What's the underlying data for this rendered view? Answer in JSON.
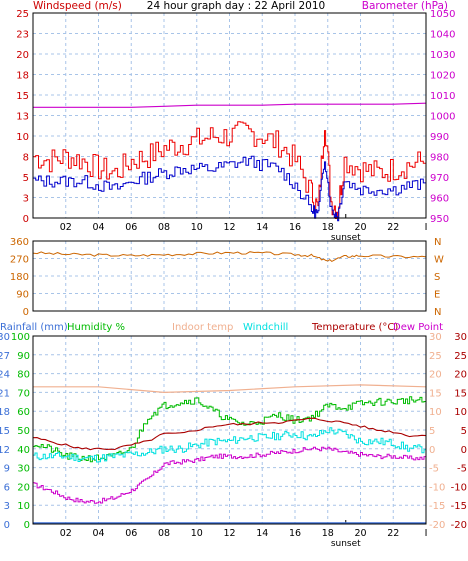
{
  "title": "24 hour graph day : 22 April 2010",
  "colors": {
    "windspeed": "#cc0000",
    "gust_line": "#ee0000",
    "avg_line": "#0000cc",
    "barometer": "#cc00cc",
    "direction": "#cc6600",
    "rainfall": "#3b6fd6",
    "humidity": "#00bb00",
    "indoor": "#f0b090",
    "windchill": "#00e0e0",
    "temperature": "#aa0000",
    "dewpoint": "#cc00cc",
    "grid": "#a8c4e8",
    "sunset_marker": "#000000"
  },
  "chart_data": [
    {
      "type": "line",
      "panel": "wind-baro",
      "left_axis_label": "Windspeed (m/s)",
      "right_axis_label": "Barometer (hPa)",
      "left_ticks": [
        "0",
        "3",
        "5",
        "8",
        "10",
        "13",
        "15",
        "18",
        "20",
        "23",
        "25"
      ],
      "left_range": [
        0,
        25
      ],
      "right_ticks": [
        "950",
        "960",
        "970",
        "980",
        "990",
        "1000",
        "1010",
        "1020",
        "1030",
        "1040",
        "1050"
      ],
      "right_range": [
        950,
        1050
      ],
      "x_ticks": [
        "02",
        "04",
        "06",
        "08",
        "10",
        "12",
        "14",
        "16",
        "18",
        "20",
        "22",
        "I"
      ],
      "x_range": [
        0,
        24
      ],
      "sunset_label": "sunset",
      "sunset_hour": 19.1,
      "grid": true,
      "series": [
        {
          "key": "gust",
          "points": [
            [
              0,
              7.5
            ],
            [
              1,
              7
            ],
            [
              2,
              7.5
            ],
            [
              3,
              7
            ],
            [
              4,
              6
            ],
            [
              5,
              5.5
            ],
            [
              6,
              7
            ],
            [
              7,
              7.5
            ],
            [
              8,
              8.5
            ],
            [
              9,
              9
            ],
            [
              10,
              9.5
            ],
            [
              11,
              10
            ],
            [
              12,
              10
            ],
            [
              13,
              10.5
            ],
            [
              14,
              10
            ],
            [
              15,
              9
            ],
            [
              16,
              7
            ],
            [
              17,
              3
            ],
            [
              17.4,
              1
            ],
            [
              17.8,
              12
            ],
            [
              18.2,
              2
            ],
            [
              18.6,
              1
            ],
            [
              19,
              7
            ],
            [
              20,
              6
            ],
            [
              21,
              5.5
            ],
            [
              22,
              6
            ],
            [
              23,
              6.5
            ],
            [
              24,
              7
            ]
          ]
        },
        {
          "key": "average",
          "points": [
            [
              0,
              4.5
            ],
            [
              1,
              4.5
            ],
            [
              2,
              4.5
            ],
            [
              3,
              4.5
            ],
            [
              4,
              4
            ],
            [
              5,
              3.5
            ],
            [
              6,
              4.5
            ],
            [
              7,
              5
            ],
            [
              8,
              5.5
            ],
            [
              9,
              6
            ],
            [
              10,
              6
            ],
            [
              11,
              6
            ],
            [
              12,
              6.5
            ],
            [
              13,
              7
            ],
            [
              14,
              6.5
            ],
            [
              15,
              6
            ],
            [
              16,
              4
            ],
            [
              17,
              1
            ],
            [
              17.4,
              0.5
            ],
            [
              17.8,
              7.5
            ],
            [
              18.2,
              1
            ],
            [
              18.6,
              0.3
            ],
            [
              19,
              4.5
            ],
            [
              20,
              3.5
            ],
            [
              21,
              3.5
            ],
            [
              22,
              3.5
            ],
            [
              23,
              4
            ],
            [
              24,
              4
            ]
          ]
        },
        {
          "key": "barometer",
          "points": [
            [
              0,
              1004
            ],
            [
              2,
              1004
            ],
            [
              4,
              1004
            ],
            [
              6,
              1004
            ],
            [
              8,
              1004.5
            ],
            [
              10,
              1005
            ],
            [
              12,
              1005
            ],
            [
              14,
              1005
            ],
            [
              16,
              1005.5
            ],
            [
              18,
              1005.5
            ],
            [
              20,
              1005.5
            ],
            [
              22,
              1005.5
            ],
            [
              24,
              1006
            ]
          ]
        }
      ]
    },
    {
      "type": "line",
      "panel": "direction",
      "left_ticks": [
        "0",
        "90",
        "180",
        "270",
        "360"
      ],
      "left_range": [
        0,
        360
      ],
      "right_ticks": [
        "N",
        "E",
        "S",
        "W",
        "N"
      ],
      "grid": true,
      "series": [
        {
          "key": "direction",
          "points": [
            [
              0,
              300
            ],
            [
              2,
              292
            ],
            [
              4,
              288
            ],
            [
              6,
              285
            ],
            [
              8,
              290
            ],
            [
              10,
              295
            ],
            [
              12,
              300
            ],
            [
              14,
              298
            ],
            [
              16,
              290
            ],
            [
              17,
              285
            ],
            [
              18,
              255
            ],
            [
              19,
              280
            ],
            [
              20,
              285
            ],
            [
              22,
              280
            ],
            [
              24,
              278
            ]
          ]
        }
      ]
    },
    {
      "type": "line",
      "panel": "temp-hum",
      "legend": [
        "Rainfall (mm)",
        "Humidity %",
        "Indoor temp",
        "Windchill",
        "Temperature (°C)",
        "Dew Point"
      ],
      "rain_ticks": [
        "0",
        "3",
        "6",
        "9",
        "12",
        "15",
        "18",
        "21",
        "24",
        "27",
        "30"
      ],
      "rain_range": [
        0,
        30
      ],
      "humidity_ticks": [
        "0",
        "10",
        "20",
        "30",
        "40",
        "50",
        "60",
        "70",
        "80",
        "90",
        "100"
      ],
      "humidity_range": [
        0,
        100
      ],
      "temp_ticks_inner": [
        "-20",
        "-15",
        "-10",
        "-5",
        "0",
        "5",
        "10",
        "15",
        "20",
        "25",
        "30"
      ],
      "temp_ticks_outer": [
        "-20",
        "-15",
        "-10",
        "-5",
        "0",
        "5",
        "10",
        "15",
        "20",
        "25",
        "30"
      ],
      "temp_range": [
        -20,
        30
      ],
      "x_ticks": [
        "02",
        "04",
        "06",
        "08",
        "10",
        "12",
        "14",
        "16",
        "18",
        "20",
        "22",
        "I"
      ],
      "sunset_label": "sunset",
      "grid": true,
      "series": [
        {
          "key": "indoor",
          "points": [
            [
              0,
              16.5
            ],
            [
              4,
              16.5
            ],
            [
              8,
              15
            ],
            [
              12,
              15.5
            ],
            [
              16,
              16.5
            ],
            [
              20,
              17
            ],
            [
              24,
              16.5
            ]
          ]
        },
        {
          "key": "humidity",
          "points": [
            [
              0,
              43
            ],
            [
              1,
              40
            ],
            [
              2,
              36
            ],
            [
              3,
              35
            ],
            [
              4,
              35
            ],
            [
              5,
              36
            ],
            [
              6,
              40
            ],
            [
              7,
              57
            ],
            [
              8,
              63
            ],
            [
              9,
              65
            ],
            [
              10,
              66
            ],
            [
              11,
              60
            ],
            [
              12,
              55
            ],
            [
              13,
              53
            ],
            [
              14,
              55
            ],
            [
              15,
              58
            ],
            [
              16,
              55
            ],
            [
              17,
              57
            ],
            [
              18,
              63
            ],
            [
              19,
              62
            ],
            [
              20,
              64
            ],
            [
              21,
              65
            ],
            [
              22,
              65
            ],
            [
              23,
              66
            ],
            [
              24,
              65
            ]
          ]
        },
        {
          "key": "temperature",
          "points": [
            [
              0,
              3
            ],
            [
              1,
              2
            ],
            [
              2,
              1
            ],
            [
              3,
              0
            ],
            [
              4,
              0
            ],
            [
              5,
              0
            ],
            [
              6,
              1
            ],
            [
              7,
              2
            ],
            [
              8,
              4
            ],
            [
              9,
              4
            ],
            [
              10,
              5
            ],
            [
              11,
              6
            ],
            [
              12,
              6.5
            ],
            [
              13,
              6.5
            ],
            [
              14,
              7
            ],
            [
              15,
              7
            ],
            [
              16,
              7.5
            ],
            [
              17,
              8
            ],
            [
              18,
              7.5
            ],
            [
              19,
              7
            ],
            [
              20,
              6
            ],
            [
              21,
              5
            ],
            [
              22,
              4.5
            ],
            [
              23,
              3.5
            ],
            [
              24,
              3.5
            ]
          ]
        },
        {
          "key": "windchill",
          "points": [
            [
              0,
              -2
            ],
            [
              1,
              -2
            ],
            [
              2,
              -2
            ],
            [
              3,
              -2.5
            ],
            [
              4,
              -2.5
            ],
            [
              5,
              -2
            ],
            [
              6,
              -1.5
            ],
            [
              7,
              -1
            ],
            [
              8,
              0
            ],
            [
              9,
              0
            ],
            [
              10,
              1
            ],
            [
              11,
              2
            ],
            [
              12,
              2
            ],
            [
              13,
              3
            ],
            [
              14,
              3
            ],
            [
              15,
              3.5
            ],
            [
              16,
              4
            ],
            [
              17,
              3
            ],
            [
              18,
              5
            ],
            [
              19,
              4
            ],
            [
              20,
              2
            ],
            [
              21,
              2
            ],
            [
              22,
              1.5
            ],
            [
              23,
              0
            ],
            [
              24,
              0
            ]
          ]
        },
        {
          "key": "dewpoint",
          "points": [
            [
              0,
              -9.5
            ],
            [
              1,
              -11
            ],
            [
              2,
              -13
            ],
            [
              3,
              -14
            ],
            [
              4,
              -14
            ],
            [
              5,
              -13
            ],
            [
              6,
              -11
            ],
            [
              7,
              -8
            ],
            [
              8,
              -4
            ],
            [
              9,
              -3.5
            ],
            [
              10,
              -3
            ],
            [
              11,
              -2
            ],
            [
              12,
              -2
            ],
            [
              13,
              -2
            ],
            [
              14,
              -1.5
            ],
            [
              15,
              -1
            ],
            [
              16,
              -0.5
            ],
            [
              17,
              0
            ],
            [
              18,
              0
            ],
            [
              19,
              -1
            ],
            [
              20,
              -1.5
            ],
            [
              21,
              -2
            ],
            [
              22,
              -2
            ],
            [
              23,
              -2.5
            ],
            [
              24,
              -2.5
            ]
          ]
        },
        {
          "key": "rainfall",
          "points": [
            [
              0,
              0
            ],
            [
              24,
              0
            ]
          ]
        }
      ]
    }
  ]
}
